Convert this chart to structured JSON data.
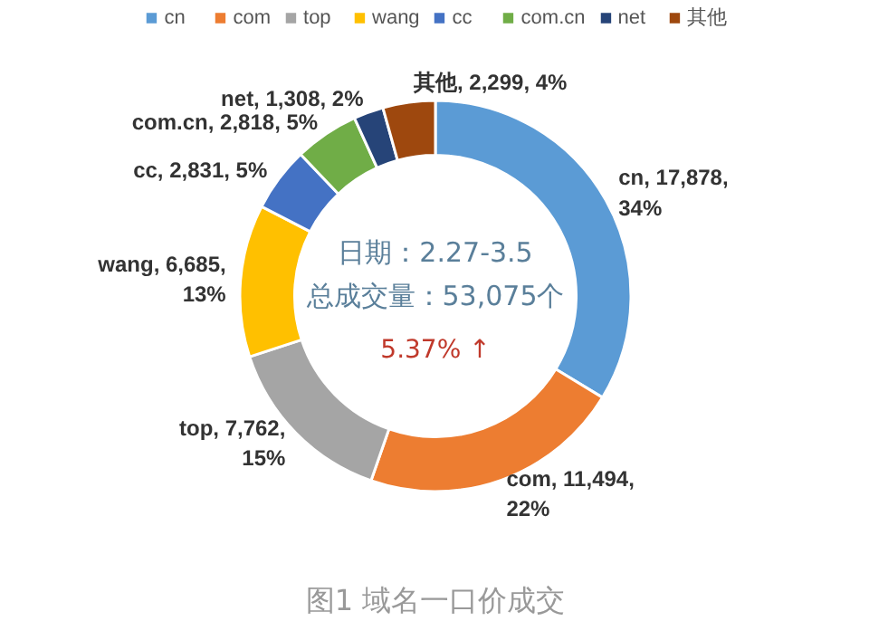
{
  "chart_data": {
    "type": "donut",
    "categories": [
      "cn",
      "com",
      "top",
      "wang",
      "cc",
      "com.cn",
      "net",
      "其他"
    ],
    "values": [
      17878,
      11494,
      7762,
      6685,
      2831,
      2818,
      1308,
      2299
    ],
    "colors": [
      "#5b9bd5",
      "#ed7d31",
      "#a5a5a5",
      "#ffc000",
      "#4472c4",
      "#70ad47",
      "#264478",
      "#9e480e"
    ],
    "value_labels": [
      "cn, 17,878,\n34%",
      "com, 11,494,\n22%",
      "top, 7,762,\n15%",
      "wang, 6,685,\n13%",
      "cc, 2,831, 5%",
      "com.cn, 2,818, 5%",
      "net, 1,308, 2%",
      "其他, 2,299, 4%"
    ],
    "legend": "top",
    "annotations": [
      "日期：2.27-3.5",
      "总成交量：53,075个",
      "5.37% ↑",
      "图1 域名一口价成交"
    ]
  }
}
